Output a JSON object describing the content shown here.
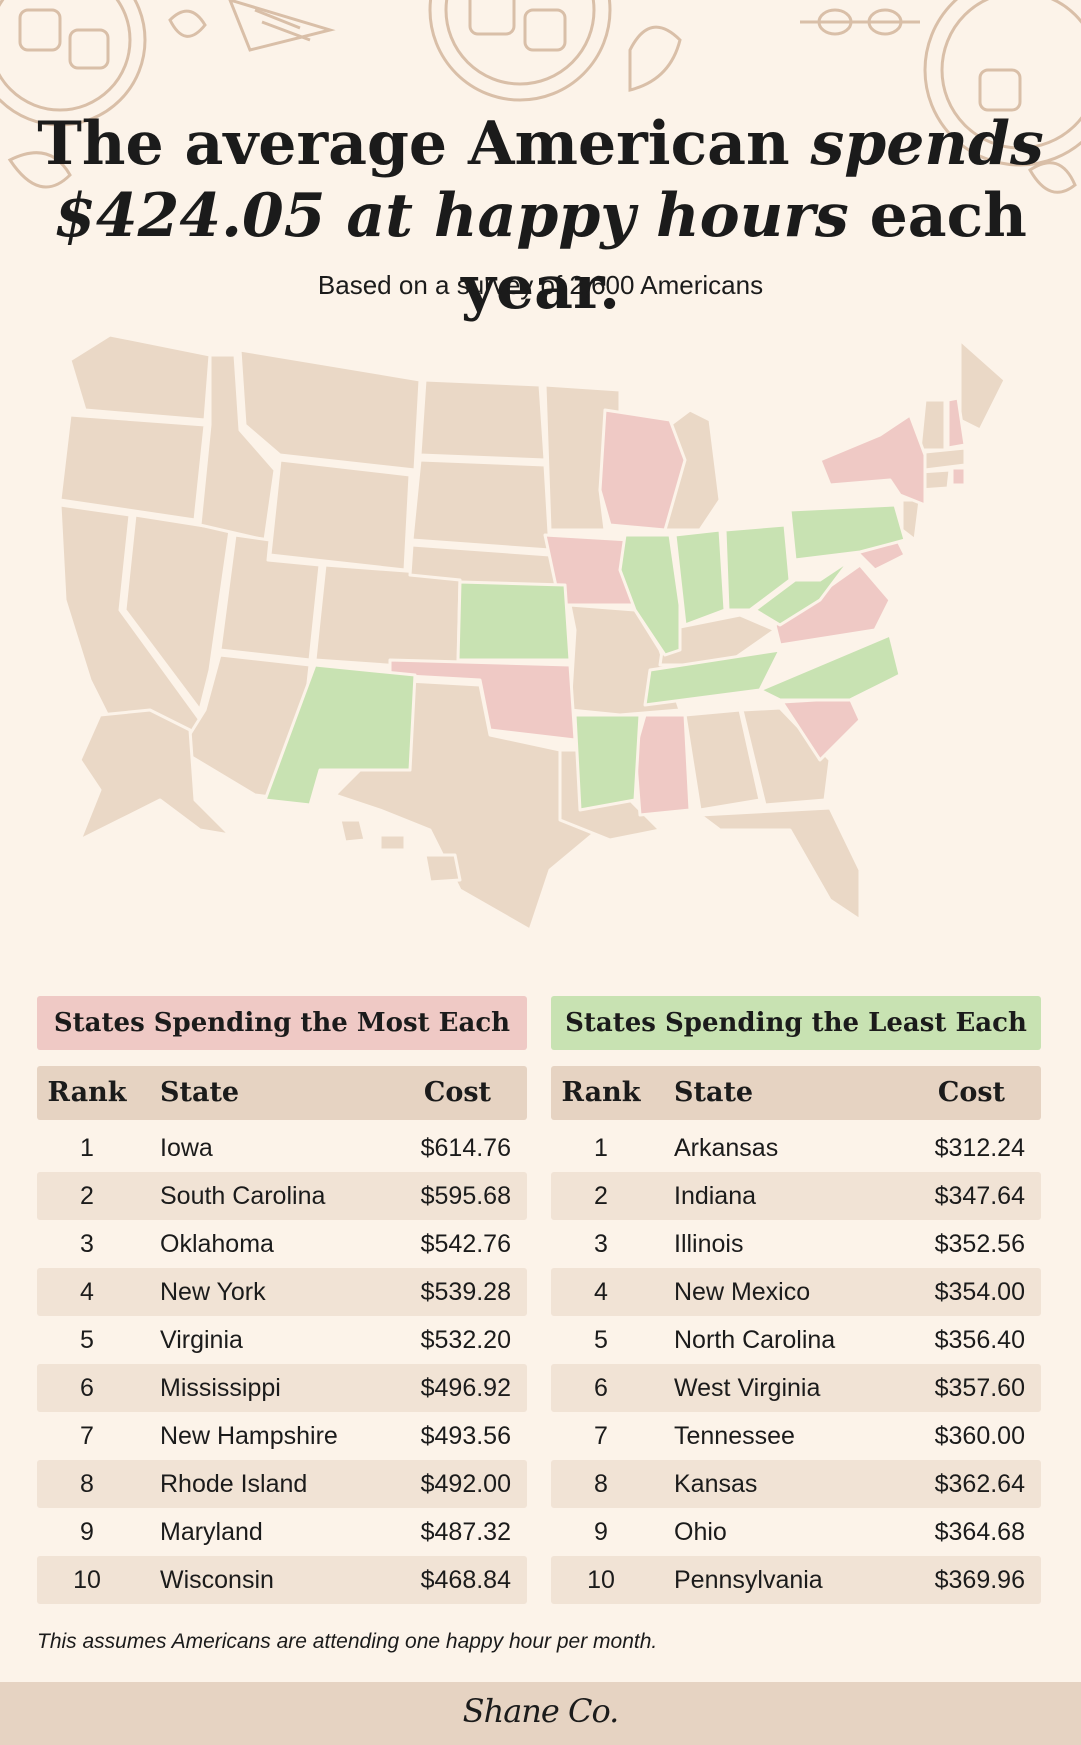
{
  "headline": {
    "line1_plain": "The average American ",
    "line1_italic": "spends",
    "line2_italic": "$424.05 at happy hours",
    "line2_plain": " each year."
  },
  "subtitle": "Based on a survey of 2,600 Americans",
  "colors": {
    "most": "#efc9c5",
    "least": "#c8e2b2",
    "neutral": "#ead8c6",
    "background": "#fcf3e9"
  },
  "chart_data": [
    {
      "type": "table",
      "title": "States Spending the Most Each Year",
      "columns": [
        "Rank",
        "State",
        "Cost"
      ],
      "rows": [
        [
          "1",
          "Iowa",
          "$614.76"
        ],
        [
          "2",
          "South Carolina",
          "$595.68"
        ],
        [
          "3",
          "Oklahoma",
          "$542.76"
        ],
        [
          "4",
          "New York",
          "$539.28"
        ],
        [
          "5",
          "Virginia",
          "$532.20"
        ],
        [
          "6",
          "Mississippi",
          "$496.92"
        ],
        [
          "7",
          "New Hampshire",
          "$493.56"
        ],
        [
          "8",
          "Rhode Island",
          "$492.00"
        ],
        [
          "9",
          "Maryland",
          "$487.32"
        ],
        [
          "10",
          "Wisconsin",
          "$468.84"
        ]
      ]
    },
    {
      "type": "table",
      "title": "States Spending the Least Each Year",
      "columns": [
        "Rank",
        "State",
        "Cost"
      ],
      "rows": [
        [
          "1",
          "Arkansas",
          "$312.24"
        ],
        [
          "2",
          "Indiana",
          "$347.64"
        ],
        [
          "3",
          "Illinois",
          "$352.56"
        ],
        [
          "4",
          "New Mexico",
          "$354.00"
        ],
        [
          "5",
          "North Carolina",
          "$356.40"
        ],
        [
          "6",
          "West Virginia",
          "$357.60"
        ],
        [
          "7",
          "Tennessee",
          "$360.00"
        ],
        [
          "8",
          "Kansas",
          "$362.64"
        ],
        [
          "9",
          "Ohio",
          "$364.68"
        ],
        [
          "10",
          "Pennsylvania",
          "$369.96"
        ]
      ]
    }
  ],
  "footnote": "This assumes Americans are attending one happy hour per month.",
  "logo": "Shane Co."
}
